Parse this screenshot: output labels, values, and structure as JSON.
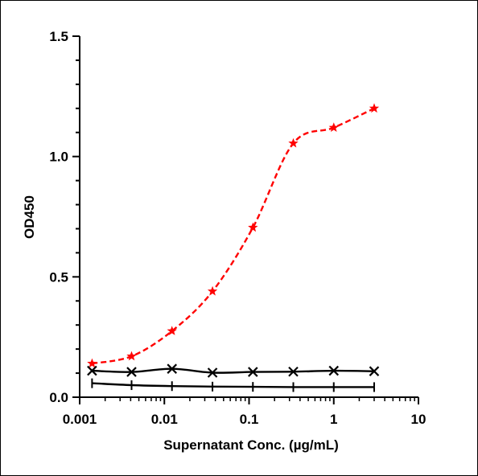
{
  "chart_data": {
    "type": "scatter",
    "xlabel": "Supernatant Conc. (µg/mL)",
    "ylabel": "OD450",
    "x_scale": "log",
    "xlim": [
      0.001,
      10
    ],
    "ylim": [
      0,
      1.5
    ],
    "x_ticks": [
      "0.001",
      "0.01",
      "0.1",
      "1",
      "10"
    ],
    "y_ticks": [
      "0.0",
      "0.5",
      "1.0",
      "1.5"
    ],
    "grid": false,
    "legend": "none",
    "series": [
      {
        "marker": "star",
        "color": "#ff0000",
        "line": "dashed-fit",
        "x": [
          0.0014,
          0.0041,
          0.0123,
          0.037,
          0.111,
          0.333,
          1,
          3
        ],
        "y": [
          0.14,
          0.17,
          0.275,
          0.44,
          0.705,
          1.055,
          1.12,
          1.2
        ]
      },
      {
        "marker": "x",
        "color": "#000000",
        "line": "solid",
        "x": [
          0.0014,
          0.0041,
          0.0123,
          0.037,
          0.111,
          0.333,
          1,
          3
        ],
        "y": [
          0.11,
          0.105,
          0.118,
          0.102,
          0.105,
          0.106,
          0.11,
          0.108
        ]
      },
      {
        "marker": "vertical-bar",
        "color": "#000000",
        "line": "solid",
        "x": [
          0.0014,
          0.0041,
          0.0123,
          0.037,
          0.111,
          0.333,
          1,
          3
        ],
        "y": [
          0.058,
          0.05,
          0.046,
          0.044,
          0.043,
          0.042,
          0.042,
          0.042
        ]
      }
    ]
  }
}
